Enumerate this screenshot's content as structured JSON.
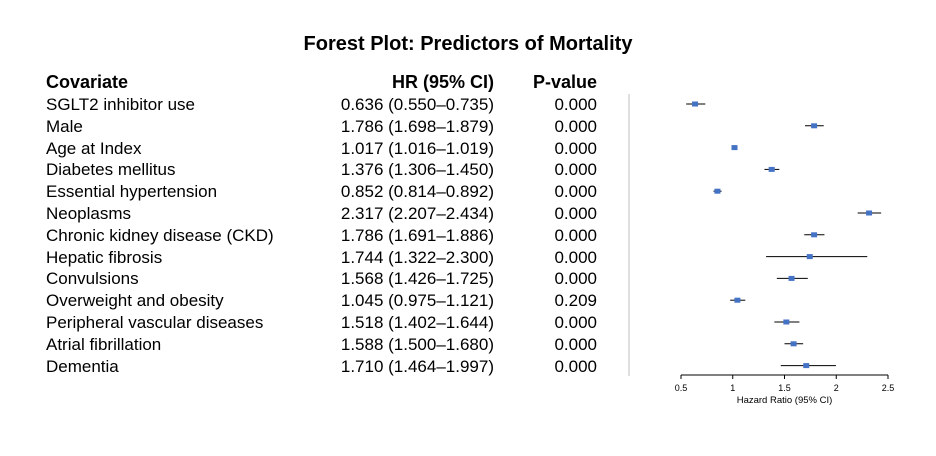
{
  "chart_data": {
    "type": "forest",
    "title": "Forest Plot: Predictors of Mortality",
    "columns": {
      "covariate": "Covariate",
      "hr": "HR (95% CI)",
      "p": "P-value"
    },
    "xlabel": "Hazard Ratio (95% CI)",
    "xlim": [
      0.5,
      2.5
    ],
    "xticks": [
      "0.5",
      "1",
      "1.5",
      "2",
      "2.5"
    ],
    "marker_color": "#4472c4",
    "rows": [
      {
        "name": "SGLT2 inhibitor use",
        "hr_text": "0.636 (0.550–0.735)",
        "p": "0.000",
        "hr": 0.636,
        "lo": 0.55,
        "hi": 0.735
      },
      {
        "name": "Male",
        "hr_text": "1.786 (1.698–1.879)",
        "p": "0.000",
        "hr": 1.786,
        "lo": 1.698,
        "hi": 1.879
      },
      {
        "name": "Age at Index",
        "hr_text": "1.017 (1.016–1.019)",
        "p": "0.000",
        "hr": 1.017,
        "lo": 1.016,
        "hi": 1.019
      },
      {
        "name": "Diabetes mellitus",
        "hr_text": "1.376 (1.306–1.450)",
        "p": "0.000",
        "hr": 1.376,
        "lo": 1.306,
        "hi": 1.45
      },
      {
        "name": "Essential hypertension",
        "hr_text": "0.852 (0.814–0.892)",
        "p": "0.000",
        "hr": 0.852,
        "lo": 0.814,
        "hi": 0.892
      },
      {
        "name": "Neoplasms",
        "hr_text": "2.317 (2.207–2.434)",
        "p": "0.000",
        "hr": 2.317,
        "lo": 2.207,
        "hi": 2.434
      },
      {
        "name": "Chronic kidney disease (CKD)",
        "hr_text": "1.786 (1.691–1.886)",
        "p": "0.000",
        "hr": 1.786,
        "lo": 1.691,
        "hi": 1.886
      },
      {
        "name": "Hepatic fibrosis",
        "hr_text": "1.744 (1.322–2.300)",
        "p": "0.000",
        "hr": 1.744,
        "lo": 1.322,
        "hi": 2.3
      },
      {
        "name": "Convulsions",
        "hr_text": "1.568 (1.426–1.725)",
        "p": "0.000",
        "hr": 1.568,
        "lo": 1.426,
        "hi": 1.725
      },
      {
        "name": "Overweight and obesity",
        "hr_text": "1.045 (0.975–1.121)",
        "p": "0.209",
        "hr": 1.045,
        "lo": 0.975,
        "hi": 1.121
      },
      {
        "name": "Peripheral vascular diseases",
        "hr_text": "1.518 (1.402–1.644)",
        "p": "0.000",
        "hr": 1.518,
        "lo": 1.402,
        "hi": 1.644
      },
      {
        "name": "Atrial fibrillation",
        "hr_text": "1.588 (1.500–1.680)",
        "p": "0.000",
        "hr": 1.588,
        "lo": 1.5,
        "hi": 1.68
      },
      {
        "name": "Dementia",
        "hr_text": "1.710 (1.464–1.997)",
        "p": "0.000",
        "hr": 1.71,
        "lo": 1.464,
        "hi": 1.997
      }
    ]
  }
}
